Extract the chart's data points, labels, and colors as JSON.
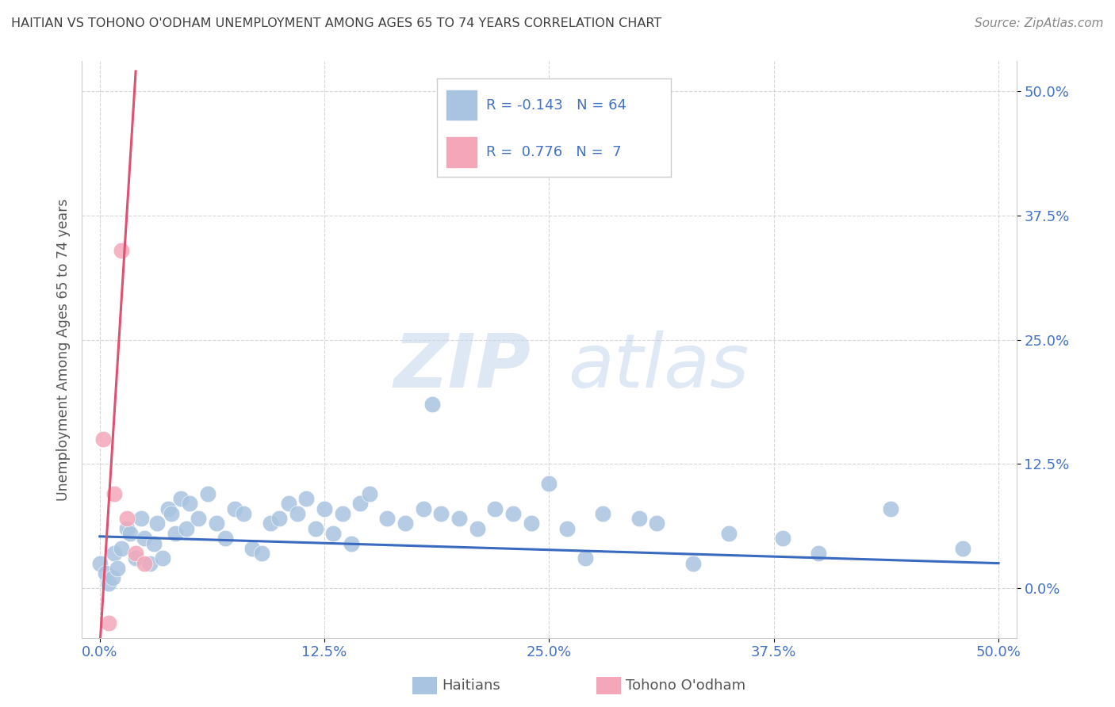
{
  "title": "HAITIAN VS TOHONO O'ODHAM UNEMPLOYMENT AMONG AGES 65 TO 74 YEARS CORRELATION CHART",
  "source": "Source: ZipAtlas.com",
  "ylabel": "Unemployment Among Ages 65 to 74 years",
  "xticklabels": [
    "0.0%",
    "12.5%",
    "25.0%",
    "37.5%",
    "50.0%"
  ],
  "yticklabels": [
    "0.0%",
    "12.5%",
    "25.0%",
    "37.5%",
    "50.0%"
  ],
  "xticks": [
    0,
    12.5,
    25.0,
    37.5,
    50.0
  ],
  "yticks": [
    0,
    12.5,
    25.0,
    37.5,
    50.0
  ],
  "xlim": [
    -1,
    51
  ],
  "ylim": [
    -5,
    53
  ],
  "legend_labels": [
    "Haitians",
    "Tohono O'odham"
  ],
  "haitian_R": "-0.143",
  "haitian_N": "64",
  "tohono_R": "0.776",
  "tohono_N": "7",
  "haitian_color": "#a8c4e0",
  "tohono_color": "#f4a7b9",
  "haitian_line_color": "#3a6abf",
  "tohono_line_color": "#e05070",
  "watermark_zip": "ZIP",
  "watermark_atlas": "atlas",
  "background_color": "#ffffff",
  "grid_color": "#cccccc",
  "title_color": "#404040",
  "axis_tick_color": "#4472c4",
  "legend_text_color": "#4472c4",
  "haitian_scatter": [
    [
      0.0,
      2.5
    ],
    [
      0.3,
      1.5
    ],
    [
      0.5,
      0.5
    ],
    [
      0.7,
      1.0
    ],
    [
      0.8,
      3.5
    ],
    [
      1.0,
      2.0
    ],
    [
      1.2,
      4.0
    ],
    [
      1.5,
      6.0
    ],
    [
      1.7,
      5.5
    ],
    [
      2.0,
      3.0
    ],
    [
      2.3,
      7.0
    ],
    [
      2.5,
      5.0
    ],
    [
      2.8,
      2.5
    ],
    [
      3.0,
      4.5
    ],
    [
      3.2,
      6.5
    ],
    [
      3.5,
      3.0
    ],
    [
      3.8,
      8.0
    ],
    [
      4.0,
      7.5
    ],
    [
      4.2,
      5.5
    ],
    [
      4.5,
      9.0
    ],
    [
      4.8,
      6.0
    ],
    [
      5.0,
      8.5
    ],
    [
      5.5,
      7.0
    ],
    [
      6.0,
      9.5
    ],
    [
      6.5,
      6.5
    ],
    [
      7.0,
      5.0
    ],
    [
      7.5,
      8.0
    ],
    [
      8.0,
      7.5
    ],
    [
      8.5,
      4.0
    ],
    [
      9.0,
      3.5
    ],
    [
      9.5,
      6.5
    ],
    [
      10.0,
      7.0
    ],
    [
      10.5,
      8.5
    ],
    [
      11.0,
      7.5
    ],
    [
      11.5,
      9.0
    ],
    [
      12.0,
      6.0
    ],
    [
      12.5,
      8.0
    ],
    [
      13.0,
      5.5
    ],
    [
      13.5,
      7.5
    ],
    [
      14.0,
      4.5
    ],
    [
      14.5,
      8.5
    ],
    [
      15.0,
      9.5
    ],
    [
      16.0,
      7.0
    ],
    [
      17.0,
      6.5
    ],
    [
      18.0,
      8.0
    ],
    [
      18.5,
      18.5
    ],
    [
      19.0,
      7.5
    ],
    [
      20.0,
      7.0
    ],
    [
      21.0,
      6.0
    ],
    [
      22.0,
      8.0
    ],
    [
      23.0,
      7.5
    ],
    [
      24.0,
      6.5
    ],
    [
      25.0,
      10.5
    ],
    [
      26.0,
      6.0
    ],
    [
      27.0,
      3.0
    ],
    [
      28.0,
      7.5
    ],
    [
      30.0,
      7.0
    ],
    [
      31.0,
      6.5
    ],
    [
      33.0,
      2.5
    ],
    [
      35.0,
      5.5
    ],
    [
      38.0,
      5.0
    ],
    [
      40.0,
      3.5
    ],
    [
      44.0,
      8.0
    ],
    [
      48.0,
      4.0
    ]
  ],
  "tohono_scatter": [
    [
      0.2,
      15.0
    ],
    [
      0.5,
      -3.5
    ],
    [
      0.8,
      9.5
    ],
    [
      1.2,
      34.0
    ],
    [
      1.5,
      7.0
    ],
    [
      2.0,
      3.5
    ],
    [
      2.5,
      2.5
    ]
  ],
  "haitian_line": {
    "x0": 0,
    "x1": 50,
    "y0": 5.2,
    "y1": 2.5
  },
  "tohono_line": {
    "x0": 0.0,
    "x1": 2.0,
    "y0": -6.0,
    "y1": 52.0
  }
}
